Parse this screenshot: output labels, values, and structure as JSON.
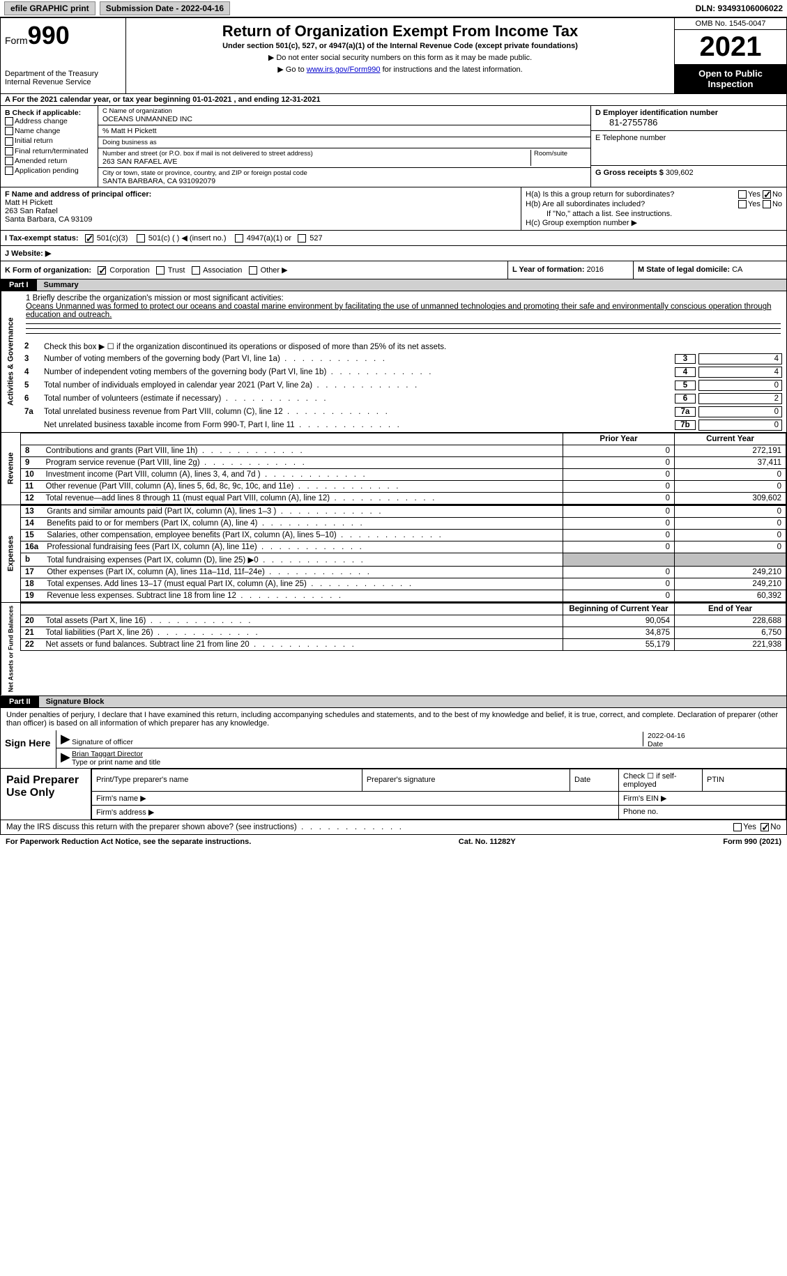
{
  "topbar": {
    "efile": "efile GRAPHIC print",
    "submission": "Submission Date - 2022-04-16",
    "dln": "DLN: 93493106006022"
  },
  "header": {
    "form_word": "Form",
    "form_num": "990",
    "dept": "Department of the Treasury",
    "irs": "Internal Revenue Service",
    "title": "Return of Organization Exempt From Income Tax",
    "subtitle": "Under section 501(c), 527, or 4947(a)(1) of the Internal Revenue Code (except private foundations)",
    "note1": "▶ Do not enter social security numbers on this form as it may be made public.",
    "note2_pre": "▶ Go to ",
    "note2_link": "www.irs.gov/Form990",
    "note2_post": " for instructions and the latest information.",
    "omb": "OMB No. 1545-0047",
    "year": "2021",
    "open": "Open to Public Inspection"
  },
  "section_a": "A  For the 2021 calendar year, or tax year beginning 01-01-2021    , and ending 12-31-2021",
  "block_b": {
    "title": "B Check if applicable:",
    "items": [
      "Address change",
      "Name change",
      "Initial return",
      "Final return/terminated",
      "Amended return",
      "Application pending"
    ]
  },
  "block_c": {
    "name_lbl": "C Name of organization",
    "name": "OCEANS UNMANNED INC",
    "care_lbl": "% Matt H Pickett",
    "dba_lbl": "Doing business as",
    "street_lbl": "Number and street (or P.O. box if mail is not delivered to street address)",
    "room_lbl": "Room/suite",
    "street": "263 SAN RAFAEL AVE",
    "city_lbl": "City or town, state or province, country, and ZIP or foreign postal code",
    "city": "SANTA BARBARA, CA   931092079"
  },
  "block_d": {
    "ein_lbl": "D Employer identification number",
    "ein": "81-2755786",
    "phone_lbl": "E Telephone number",
    "gross_lbl": "G Gross receipts $",
    "gross": "309,602"
  },
  "block_f": {
    "lbl": "F  Name and address of principal officer:",
    "name": "Matt H Pickett",
    "street": "263 San Rafael",
    "city": "Santa Barbara, CA   93109"
  },
  "block_h": {
    "ha": "H(a)  Is this a group return for subordinates?",
    "hb": "H(b)  Are all subordinates included?",
    "hb_note": "If \"No,\" attach a list. See instructions.",
    "hc": "H(c)  Group exemption number ▶"
  },
  "block_i": {
    "lbl": "I    Tax-exempt status:",
    "opts": [
      "501(c)(3)",
      "501(c) (   ) ◀ (insert no.)",
      "4947(a)(1) or",
      "527"
    ]
  },
  "block_j": "J   Website: ▶",
  "block_k": {
    "lbl": "K Form of organization:",
    "opts": [
      "Corporation",
      "Trust",
      "Association",
      "Other ▶"
    ]
  },
  "block_l": {
    "lbl": "L Year of formation:",
    "val": "2016"
  },
  "block_m": {
    "lbl": "M State of legal domicile:",
    "val": "CA"
  },
  "part1": {
    "label": "Part I",
    "title": "Summary"
  },
  "mission": {
    "lbl": "1   Briefly describe the organization's mission or most significant activities:",
    "text": "Oceans Unmanned was formed to protect our oceans and coastal marine environment by facilitating the use of unmanned technologies and promoting their safe and environmentally conscious operation through education and outreach."
  },
  "line2": "Check this box ▶ ☐  if the organization discontinued its operations or disposed of more than 25% of its net assets.",
  "activities_rows": [
    {
      "n": "3",
      "t": "Number of voting members of the governing body (Part VI, line 1a)",
      "b": "3",
      "v": "4"
    },
    {
      "n": "4",
      "t": "Number of independent voting members of the governing body (Part VI, line 1b)",
      "b": "4",
      "v": "4"
    },
    {
      "n": "5",
      "t": "Total number of individuals employed in calendar year 2021 (Part V, line 2a)",
      "b": "5",
      "v": "0"
    },
    {
      "n": "6",
      "t": "Total number of volunteers (estimate if necessary)",
      "b": "6",
      "v": "2"
    },
    {
      "n": "7a",
      "t": "Total unrelated business revenue from Part VIII, column (C), line 12",
      "b": "7a",
      "v": "0"
    },
    {
      "n": "",
      "t": "Net unrelated business taxable income from Form 990-T, Part I, line 11",
      "b": "7b",
      "v": "0"
    }
  ],
  "pycy_hdr": {
    "py": "Prior Year",
    "cy": "Current Year"
  },
  "revenue_rows": [
    {
      "n": "8",
      "t": "Contributions and grants (Part VIII, line 1h)",
      "py": "0",
      "cy": "272,191"
    },
    {
      "n": "9",
      "t": "Program service revenue (Part VIII, line 2g)",
      "py": "0",
      "cy": "37,411"
    },
    {
      "n": "10",
      "t": "Investment income (Part VIII, column (A), lines 3, 4, and 7d )",
      "py": "0",
      "cy": "0"
    },
    {
      "n": "11",
      "t": "Other revenue (Part VIII, column (A), lines 5, 6d, 8c, 9c, 10c, and 11e)",
      "py": "0",
      "cy": "0"
    },
    {
      "n": "12",
      "t": "Total revenue—add lines 8 through 11 (must equal Part VIII, column (A), line 12)",
      "py": "0",
      "cy": "309,602"
    }
  ],
  "expense_rows": [
    {
      "n": "13",
      "t": "Grants and similar amounts paid (Part IX, column (A), lines 1–3 )",
      "py": "0",
      "cy": "0"
    },
    {
      "n": "14",
      "t": "Benefits paid to or for members (Part IX, column (A), line 4)",
      "py": "0",
      "cy": "0"
    },
    {
      "n": "15",
      "t": "Salaries, other compensation, employee benefits (Part IX, column (A), lines 5–10)",
      "py": "0",
      "cy": "0"
    },
    {
      "n": "16a",
      "t": "Professional fundraising fees (Part IX, column (A), line 11e)",
      "py": "0",
      "cy": "0"
    },
    {
      "n": "b",
      "t": "Total fundraising expenses (Part IX, column (D), line 25) ▶0",
      "py": "grey",
      "cy": "grey"
    },
    {
      "n": "17",
      "t": "Other expenses (Part IX, column (A), lines 11a–11d, 11f–24e)",
      "py": "0",
      "cy": "249,210"
    },
    {
      "n": "18",
      "t": "Total expenses. Add lines 13–17 (must equal Part IX, column (A), line 25)",
      "py": "0",
      "cy": "249,210"
    },
    {
      "n": "19",
      "t": "Revenue less expenses. Subtract line 18 from line 12",
      "py": "0",
      "cy": "60,392"
    }
  ],
  "na_hdr": {
    "py": "Beginning of Current Year",
    "cy": "End of Year"
  },
  "na_rows": [
    {
      "n": "20",
      "t": "Total assets (Part X, line 16)",
      "py": "90,054",
      "cy": "228,688"
    },
    {
      "n": "21",
      "t": "Total liabilities (Part X, line 26)",
      "py": "34,875",
      "cy": "6,750"
    },
    {
      "n": "22",
      "t": "Net assets or fund balances. Subtract line 21 from line 20",
      "py": "55,179",
      "cy": "221,938"
    }
  ],
  "side_labels": {
    "ag": "Activities & Governance",
    "rev": "Revenue",
    "exp": "Expenses",
    "na": "Net Assets or Fund Balances"
  },
  "part2": {
    "label": "Part II",
    "title": "Signature Block"
  },
  "sig_text": "Under penalties of perjury, I declare that I have examined this return, including accompanying schedules and statements, and to the best of my knowledge and belief, it is true, correct, and complete. Declaration of preparer (other than officer) is based on all information of which preparer has any knowledge.",
  "sign_here": "Sign Here",
  "sig_officer": "Signature of officer",
  "sig_date_lbl": "Date",
  "sig_date": "2022-04-16",
  "sig_name": "Brian Taggart Director",
  "sig_name_lbl": "Type or print name and title",
  "paid": {
    "title": "Paid Preparer Use Only",
    "h1": "Print/Type preparer's name",
    "h2": "Preparer's signature",
    "h3": "Date",
    "h4": "Check ☐ if self-employed",
    "h5": "PTIN",
    "firm_name": "Firm's name    ▶",
    "firm_ein": "Firm's EIN ▶",
    "firm_addr": "Firm's address ▶",
    "phone": "Phone no."
  },
  "discuss": "May the IRS discuss this return with the preparer shown above? (see instructions)",
  "yes": "Yes",
  "no": "No",
  "footer": {
    "left": "For Paperwork Reduction Act Notice, see the separate instructions.",
    "mid": "Cat. No. 11282Y",
    "right": "Form 990 (2021)"
  }
}
